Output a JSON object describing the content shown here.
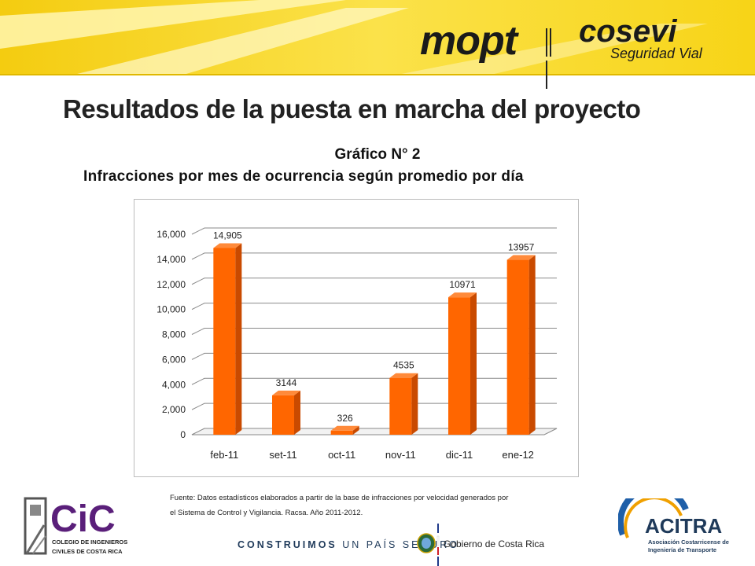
{
  "header": {
    "logo_mopt": "mopt",
    "logo_cosevi": "cosevi",
    "logo_cosevi_sub": "Seguridad Vial",
    "colors": {
      "banner_yellow": "#f7d417",
      "banner_light": "#fff6a8"
    }
  },
  "slide": {
    "title": "Resultados de la puesta en marcha del proyecto",
    "chart_number": "Gráfico N° 2",
    "chart_subtitle": "Infracciones  por mes  de ocurrencia según promedio por día"
  },
  "chart_data": {
    "type": "bar",
    "categories": [
      "feb-11",
      "set-11",
      "oct-11",
      "nov-11",
      "dic-11",
      "ene-12"
    ],
    "values": [
      14905,
      3144,
      326,
      4535,
      10971,
      13957
    ],
    "data_labels": [
      "14,905",
      "3144",
      "326",
      "4535",
      "10971",
      "13957"
    ],
    "yticks": [
      "0",
      "2,000",
      "4,000",
      "6,000",
      "8,000",
      "10,000",
      "12,000",
      "14,000",
      "16,000"
    ],
    "ylim": [
      0,
      16000
    ],
    "grid": true,
    "bar_color": "#ff6600",
    "bar_side_color": "#c94a00"
  },
  "footer": {
    "source_line1": "Fuente: Datos estadísticos elaborados a partir de la base de infracciones por velocidad generados  por",
    "source_line2": "el Sistema de Control y Vigilancia. Racsa. Año 2011-2012.",
    "cic_logo_text": "CiC",
    "cic_sub1": "COLEGIO DE INGENIEROS",
    "cic_sub2": "CIVILES DE COSTA RICA",
    "slogan_bold": "CONSTRUIMOS",
    "slogan_rest": " UN PAÍS SEGURO",
    "gov_text": "Gobierno de Costa Rica",
    "acitra_name": "ACITRA",
    "acitra_sub1": "Asociación Costarricense de",
    "acitra_sub2": "Ingeniería de Transporte"
  }
}
